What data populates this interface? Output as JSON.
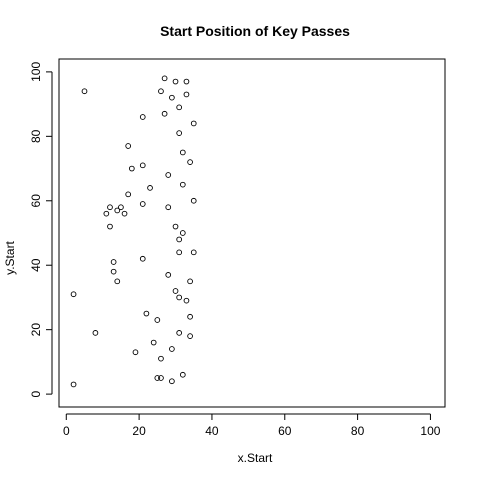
{
  "chart_data": {
    "type": "scatter",
    "title": "Start Position of Key Passes",
    "xlabel": "x.Start",
    "ylabel": "y.Start",
    "xlim": [
      -2,
      104
    ],
    "ylim": [
      -4,
      104
    ],
    "xticks": [
      0,
      20,
      40,
      60,
      80,
      100
    ],
    "yticks": [
      0,
      20,
      40,
      60,
      80,
      100
    ],
    "grid": false,
    "marker": "open-circle",
    "series": [
      {
        "points": [
          [
            2,
            3
          ],
          [
            2,
            31
          ],
          [
            5,
            94
          ],
          [
            8,
            19
          ],
          [
            11,
            56
          ],
          [
            12,
            52
          ],
          [
            12,
            58
          ],
          [
            13,
            38
          ],
          [
            13,
            41
          ],
          [
            14,
            35
          ],
          [
            14,
            57
          ],
          [
            15,
            58
          ],
          [
            16,
            56
          ],
          [
            17,
            77
          ],
          [
            17,
            62
          ],
          [
            18,
            70
          ],
          [
            19,
            13
          ],
          [
            21,
            42
          ],
          [
            21,
            59
          ],
          [
            21,
            71
          ],
          [
            21,
            86
          ],
          [
            22,
            25
          ],
          [
            23,
            64
          ],
          [
            24,
            16
          ],
          [
            25,
            23
          ],
          [
            25,
            5
          ],
          [
            26,
            11
          ],
          [
            26,
            5
          ],
          [
            26,
            94
          ],
          [
            27,
            98
          ],
          [
            27,
            87
          ],
          [
            28,
            37
          ],
          [
            28,
            58
          ],
          [
            28,
            68
          ],
          [
            29,
            92
          ],
          [
            29,
            14
          ],
          [
            29,
            4
          ],
          [
            30,
            97
          ],
          [
            30,
            52
          ],
          [
            30,
            32
          ],
          [
            31,
            30
          ],
          [
            31,
            19
          ],
          [
            31,
            44
          ],
          [
            31,
            48
          ],
          [
            31,
            81
          ],
          [
            31,
            89
          ],
          [
            32,
            6
          ],
          [
            32,
            50
          ],
          [
            32,
            65
          ],
          [
            32,
            75
          ],
          [
            33,
            97
          ],
          [
            33,
            93
          ],
          [
            33,
            29
          ],
          [
            34,
            18
          ],
          [
            34,
            24
          ],
          [
            34,
            35
          ],
          [
            34,
            72
          ],
          [
            35,
            84
          ],
          [
            35,
            60
          ],
          [
            35,
            44
          ]
        ]
      }
    ]
  }
}
